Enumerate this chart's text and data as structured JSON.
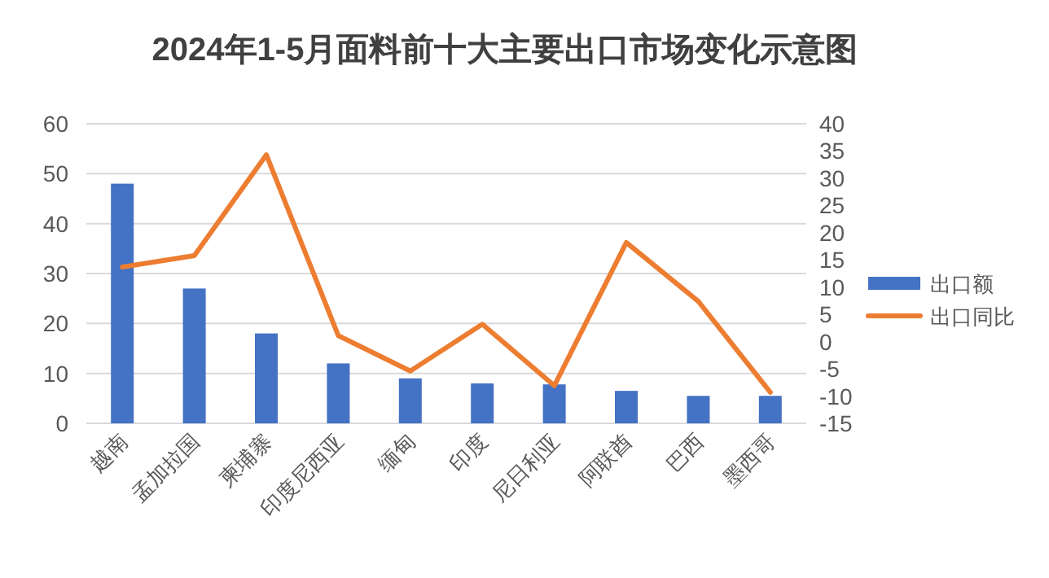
{
  "chart_data": {
    "type": "bar",
    "title": "2024年1-5月面料前十大主要出口市场变化示意图",
    "categories": [
      "越南",
      "孟加拉国",
      "柬埔寨",
      "印度尼西亚",
      "缅甸",
      "印度",
      "尼日利亚",
      "阿联酋",
      "巴西",
      "墨西哥"
    ],
    "series": [
      {
        "name": "出口额",
        "color": "#4472c4",
        "values": [
          48,
          27,
          18,
          12,
          9,
          8,
          7.8,
          6.5,
          5.5,
          5.5
        ]
      },
      {
        "name": "出口同比",
        "type": "line",
        "axis": "y2",
        "color": "#ed7d31",
        "values": [
          13.7,
          15.8,
          34.3,
          1.1,
          -5.4,
          3.2,
          -8.1,
          18.2,
          7.4,
          -9.3
        ]
      }
    ],
    "ylim": [
      0,
      60
    ],
    "yticks": [
      0,
      10,
      20,
      30,
      40,
      50,
      60
    ],
    "y2lim": [
      -15,
      40
    ],
    "y2ticks": [
      -15,
      -10,
      -5,
      0,
      5,
      10,
      15,
      20,
      25,
      30,
      35,
      40
    ],
    "grid": "y",
    "legend": "right"
  }
}
